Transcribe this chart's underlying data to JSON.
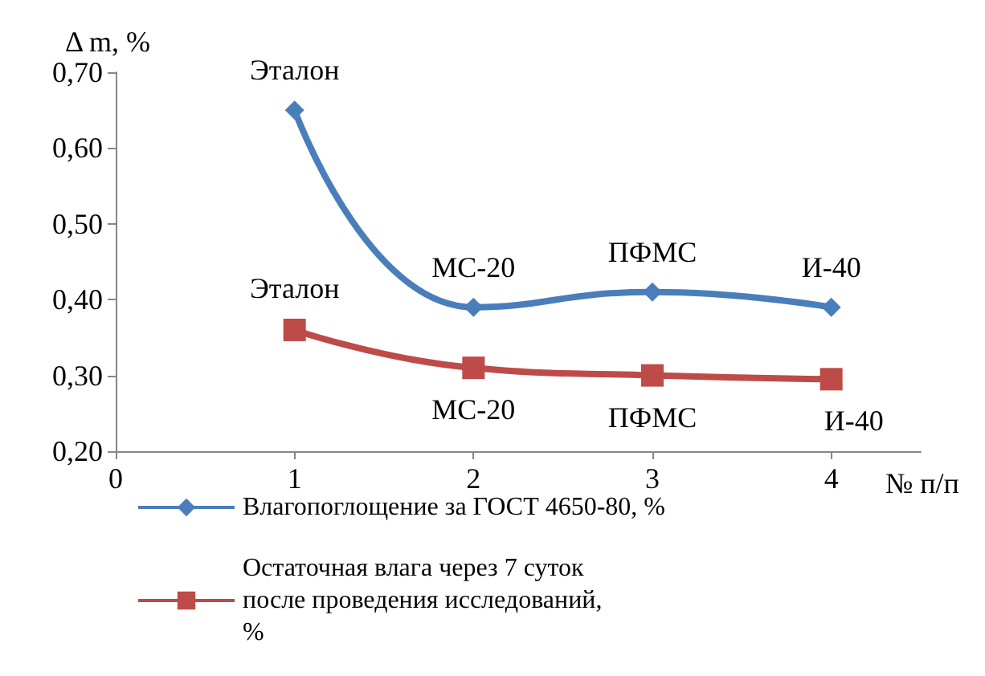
{
  "chart_data": {
    "type": "line",
    "ylabel": "Δ m, %",
    "xlabel": "№ п/п",
    "xlim": [
      0,
      4.5
    ],
    "xticks": [
      0,
      1,
      2,
      3,
      4
    ],
    "ylim": [
      0.2,
      0.7
    ],
    "yticks": [
      {
        "value": 0.2,
        "label": "0,20"
      },
      {
        "value": 0.3,
        "label": "0,30"
      },
      {
        "value": 0.4,
        "label": "0,40"
      },
      {
        "value": 0.5,
        "label": "0,50"
      },
      {
        "value": 0.6,
        "label": "0,60"
      },
      {
        "value": 0.7,
        "label": "0,70"
      }
    ],
    "x": [
      1,
      2,
      3,
      4
    ],
    "series": [
      {
        "name": "Влагопоглощение за ГОСТ 4650-80, %",
        "color": "#4a7ebb",
        "values": [
          0.65,
          0.39,
          0.41,
          0.39
        ],
        "marker": "diamond"
      },
      {
        "name": "Остаточная влага через 7 суток после проведения исследований, %",
        "color": "#be4b48",
        "values": [
          0.36,
          0.31,
          0.3,
          0.295
        ],
        "marker": "square"
      }
    ],
    "annotations": [
      {
        "text": "Эталон",
        "x": 1,
        "y": 0.65
      },
      {
        "text": "МС-20",
        "x": 2,
        "y": 0.39
      },
      {
        "text": "ПФМС",
        "x": 3,
        "y": 0.41
      },
      {
        "text": "И-40",
        "x": 4,
        "y": 0.39
      },
      {
        "text": "Эталон",
        "x": 1,
        "y": 0.36
      },
      {
        "text": "МС-20",
        "x": 2,
        "y": 0.31
      },
      {
        "text": "ПФМС",
        "x": 3,
        "y": 0.3
      },
      {
        "text": "И-40",
        "x": 4,
        "y": 0.295
      }
    ],
    "grid": false,
    "legend": "bottom"
  }
}
